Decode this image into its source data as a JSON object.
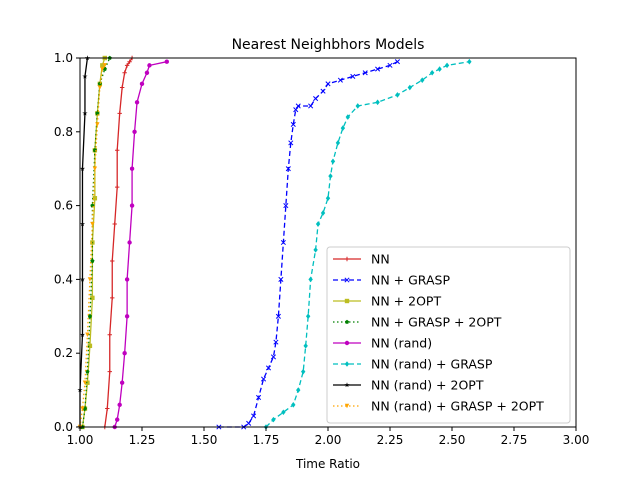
{
  "chart_data": {
    "type": "line",
    "title": "Nearest Neighbhors Models",
    "xlabel": "Time Ratio",
    "ylabel": "",
    "xlim": [
      1.0,
      3.0
    ],
    "ylim": [
      0.0,
      1.0
    ],
    "xticks": [
      "1.00",
      "1.25",
      "1.50",
      "1.75",
      "2.00",
      "2.25",
      "2.50",
      "2.75",
      "3.00"
    ],
    "yticks": [
      "0.0",
      "0.2",
      "0.4",
      "0.6",
      "0.8",
      "1.0"
    ],
    "grid": false,
    "legend_position": "lower-right",
    "series": [
      {
        "name": "NN",
        "color": "#d62728",
        "linestyle": "solid",
        "marker": "plus",
        "points": [
          [
            1.1,
            0.0
          ],
          [
            1.11,
            0.05
          ],
          [
            1.12,
            0.15
          ],
          [
            1.12,
            0.25
          ],
          [
            1.13,
            0.35
          ],
          [
            1.13,
            0.45
          ],
          [
            1.14,
            0.55
          ],
          [
            1.15,
            0.65
          ],
          [
            1.15,
            0.75
          ],
          [
            1.16,
            0.85
          ],
          [
            1.17,
            0.92
          ],
          [
            1.18,
            0.96
          ],
          [
            1.19,
            0.98
          ],
          [
            1.2,
            0.99
          ],
          [
            1.21,
            1.0
          ]
        ]
      },
      {
        "name": "NN + GRASP",
        "color": "#0000ff",
        "linestyle": "dashed",
        "marker": "x",
        "points": [
          [
            1.56,
            0.0
          ],
          [
            1.66,
            0.0
          ],
          [
            1.68,
            0.01
          ],
          [
            1.7,
            0.03
          ],
          [
            1.72,
            0.08
          ],
          [
            1.74,
            0.13
          ],
          [
            1.76,
            0.16
          ],
          [
            1.78,
            0.19
          ],
          [
            1.79,
            0.23
          ],
          [
            1.8,
            0.3
          ],
          [
            1.81,
            0.4
          ],
          [
            1.82,
            0.5
          ],
          [
            1.83,
            0.6
          ],
          [
            1.84,
            0.7
          ],
          [
            1.85,
            0.77
          ],
          [
            1.86,
            0.82
          ],
          [
            1.87,
            0.86
          ],
          [
            1.88,
            0.87
          ],
          [
            1.93,
            0.87
          ],
          [
            1.95,
            0.89
          ],
          [
            1.98,
            0.91
          ],
          [
            2.0,
            0.93
          ],
          [
            2.05,
            0.94
          ],
          [
            2.1,
            0.95
          ],
          [
            2.15,
            0.96
          ],
          [
            2.2,
            0.97
          ],
          [
            2.25,
            0.98
          ],
          [
            2.28,
            0.99
          ]
        ]
      },
      {
        "name": "NN + 2OPT",
        "color": "#bcbd22",
        "linestyle": "solid",
        "marker": "square",
        "points": [
          [
            1.01,
            0.0
          ],
          [
            1.02,
            0.05
          ],
          [
            1.03,
            0.12
          ],
          [
            1.04,
            0.22
          ],
          [
            1.05,
            0.35
          ],
          [
            1.05,
            0.5
          ],
          [
            1.06,
            0.62
          ],
          [
            1.06,
            0.75
          ],
          [
            1.07,
            0.85
          ],
          [
            1.08,
            0.93
          ],
          [
            1.09,
            0.98
          ],
          [
            1.1,
            1.0
          ]
        ]
      },
      {
        "name": "NN + GRASP + 2OPT",
        "color": "#008000",
        "linestyle": "dotted",
        "marker": "pentagon",
        "points": [
          [
            1.01,
            0.0
          ],
          [
            1.02,
            0.05
          ],
          [
            1.03,
            0.15
          ],
          [
            1.04,
            0.3
          ],
          [
            1.05,
            0.45
          ],
          [
            1.05,
            0.6
          ],
          [
            1.06,
            0.75
          ],
          [
            1.07,
            0.85
          ],
          [
            1.08,
            0.93
          ],
          [
            1.1,
            0.97
          ],
          [
            1.12,
            1.0
          ]
        ]
      },
      {
        "name": "NN (rand)",
        "color": "#bf00bf",
        "linestyle": "solid",
        "marker": "circle",
        "points": [
          [
            1.14,
            0.0
          ],
          [
            1.15,
            0.02
          ],
          [
            1.16,
            0.06
          ],
          [
            1.17,
            0.12
          ],
          [
            1.18,
            0.2
          ],
          [
            1.19,
            0.3
          ],
          [
            1.19,
            0.4
          ],
          [
            1.2,
            0.5
          ],
          [
            1.21,
            0.6
          ],
          [
            1.21,
            0.7
          ],
          [
            1.22,
            0.8
          ],
          [
            1.23,
            0.88
          ],
          [
            1.25,
            0.93
          ],
          [
            1.27,
            0.96
          ],
          [
            1.28,
            0.98
          ],
          [
            1.35,
            0.99
          ]
        ]
      },
      {
        "name": "NN (rand) + GRASP",
        "color": "#00bfbf",
        "linestyle": "dashed",
        "marker": "diamond",
        "points": [
          [
            1.75,
            0.0
          ],
          [
            1.78,
            0.02
          ],
          [
            1.82,
            0.04
          ],
          [
            1.86,
            0.06
          ],
          [
            1.88,
            0.1
          ],
          [
            1.9,
            0.15
          ],
          [
            1.91,
            0.22
          ],
          [
            1.92,
            0.3
          ],
          [
            1.93,
            0.4
          ],
          [
            1.95,
            0.48
          ],
          [
            1.96,
            0.55
          ],
          [
            1.98,
            0.58
          ],
          [
            2.0,
            0.62
          ],
          [
            2.01,
            0.68
          ],
          [
            2.02,
            0.72
          ],
          [
            2.04,
            0.77
          ],
          [
            2.06,
            0.81
          ],
          [
            2.08,
            0.84
          ],
          [
            2.12,
            0.87
          ],
          [
            2.2,
            0.88
          ],
          [
            2.28,
            0.9
          ],
          [
            2.33,
            0.92
          ],
          [
            2.38,
            0.94
          ],
          [
            2.42,
            0.96
          ],
          [
            2.45,
            0.97
          ],
          [
            2.48,
            0.98
          ],
          [
            2.57,
            0.99
          ]
        ]
      },
      {
        "name": "NN (rand) + 2OPT",
        "color": "#000000",
        "linestyle": "solid",
        "marker": "star",
        "points": [
          [
            1.0,
            0.0
          ],
          [
            1.0,
            0.1
          ],
          [
            1.01,
            0.25
          ],
          [
            1.01,
            0.4
          ],
          [
            1.01,
            0.55
          ],
          [
            1.01,
            0.7
          ],
          [
            1.02,
            0.85
          ],
          [
            1.02,
            0.95
          ],
          [
            1.03,
            1.0
          ]
        ]
      },
      {
        "name": "NN (rand) + GRASP + 2OPT",
        "color": "#ffa500",
        "linestyle": "dotted",
        "marker": "triangle-down",
        "points": [
          [
            1.0,
            0.0
          ],
          [
            1.01,
            0.05
          ],
          [
            1.02,
            0.12
          ],
          [
            1.03,
            0.25
          ],
          [
            1.04,
            0.4
          ],
          [
            1.05,
            0.55
          ],
          [
            1.06,
            0.7
          ],
          [
            1.07,
            0.82
          ],
          [
            1.08,
            0.92
          ],
          [
            1.09,
            0.97
          ],
          [
            1.1,
            0.98
          ]
        ]
      }
    ]
  }
}
